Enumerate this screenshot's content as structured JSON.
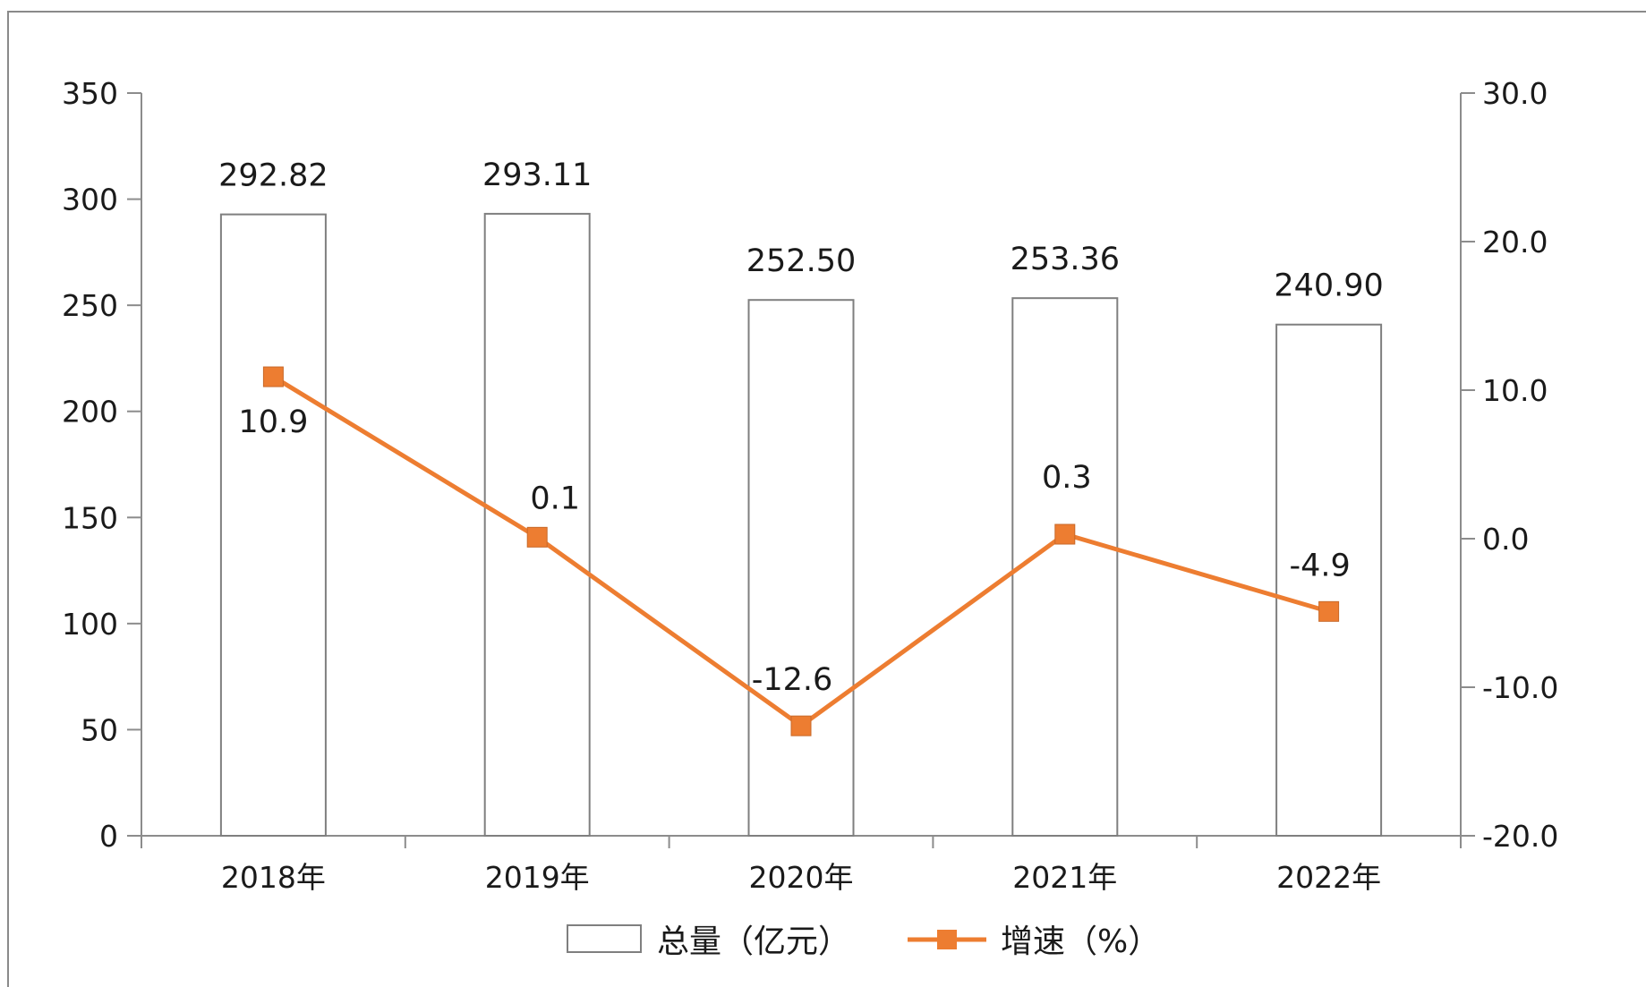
{
  "chart_data": {
    "type": "bar",
    "categories": [
      "2018年",
      "2019年",
      "2020年",
      "2021年",
      "2022年"
    ],
    "series": [
      {
        "name": "总量（亿元）",
        "type": "bar",
        "axis": "left",
        "values": [
          292.82,
          293.11,
          252.5,
          253.36,
          240.9
        ],
        "labels": [
          "292.82",
          "293.11",
          "252.50",
          "253.36",
          "240.90"
        ],
        "color": "#ffffff",
        "stroke": "#7f7f7f"
      },
      {
        "name": "增速（%）",
        "type": "line",
        "axis": "right",
        "values": [
          10.9,
          0.1,
          -12.6,
          0.3,
          -4.9
        ],
        "labels": [
          "10.9",
          "0.1",
          "-12.6",
          "0.3",
          "-4.9"
        ],
        "color": "#ed7d31"
      }
    ],
    "y_left": {
      "min": 0,
      "max": 350,
      "ticks": [
        0,
        50,
        100,
        150,
        200,
        250,
        300,
        350
      ],
      "tick_labels": [
        "0",
        "50",
        "100",
        "150",
        "200",
        "250",
        "300",
        "350"
      ]
    },
    "y_right": {
      "min": -20,
      "max": 30,
      "ticks": [
        -20,
        -10,
        0,
        10,
        20,
        30
      ],
      "tick_labels": [
        "-20.0",
        "-10.0",
        "0.0",
        "10.0",
        "20.0",
        "30.0"
      ]
    },
    "grid": false,
    "legend": "bottom",
    "title": "",
    "xlabel": "",
    "ylabel": ""
  }
}
